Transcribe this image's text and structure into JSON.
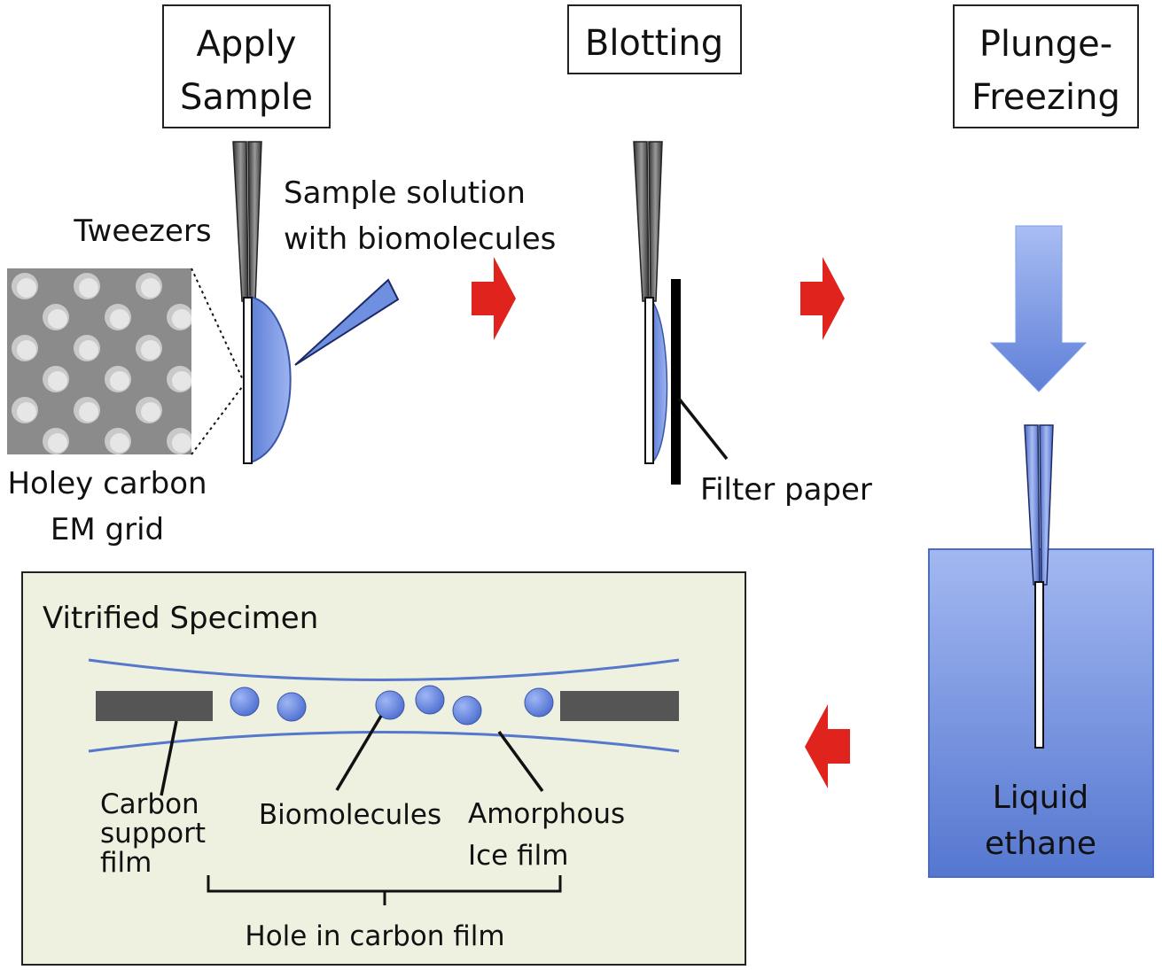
{
  "steps": {
    "apply_line1": "Apply",
    "apply_line2": "Sample",
    "blotting": "Blotting",
    "plunge_line1": "Plunge-",
    "plunge_line2": "Freezing"
  },
  "labels": {
    "tweezers": "Tweezers",
    "sample_line1": "Sample solution",
    "sample_line2": "with biomolecules",
    "grid_line1": "Holey carbon",
    "grid_line2": "EM grid",
    "filter_paper": "Filter paper",
    "ethane_line1": "Liquid",
    "ethane_line2": "ethane"
  },
  "specimen": {
    "title": "Vitrified Specimen",
    "carbon_line1": "Carbon",
    "carbon_line2": "support",
    "carbon_line3": "film",
    "biomolecules": "Biomolecules",
    "ice_line1": "Amorphous",
    "ice_line2": "Ice film",
    "hole": "Hole in carbon film"
  },
  "colors": {
    "arrow_red": "#e0231c",
    "sample_blue": "#6f8fe0",
    "ethane_blue": "#7f9ce8",
    "panel_bg": "#eef0e0",
    "carbon_gray": "#555555",
    "ice_line": "#5577cc"
  },
  "icons": [
    "red-arrow-icon",
    "down-arrow-icon",
    "tweezers-icon",
    "pipette-icon"
  ]
}
